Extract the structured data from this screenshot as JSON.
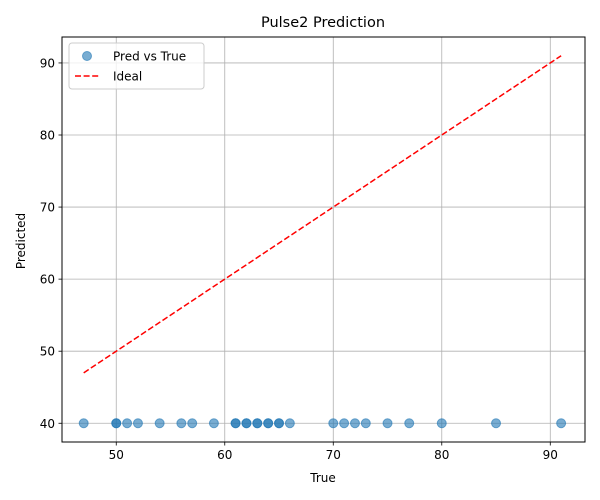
{
  "chart_data": {
    "type": "scatter",
    "title": "Pulse2 Prediction",
    "xlabel": "True",
    "ylabel": "Predicted",
    "xlim": [
      45,
      93.2
    ],
    "ylim": [
      37.4,
      93.6
    ],
    "xticks": [
      50,
      60,
      70,
      80,
      90
    ],
    "yticks": [
      40,
      50,
      60,
      70,
      80,
      90
    ],
    "grid": true,
    "legend_position": "top-left",
    "series": [
      {
        "name": "Pred vs True",
        "kind": "scatter",
        "color": "#1f77b4",
        "points": [
          [
            47,
            40
          ],
          [
            50,
            40
          ],
          [
            50,
            40
          ],
          [
            51,
            40
          ],
          [
            52,
            40
          ],
          [
            54,
            40
          ],
          [
            56,
            40
          ],
          [
            57,
            40
          ],
          [
            59,
            40
          ],
          [
            61,
            40
          ],
          [
            61,
            40
          ],
          [
            62,
            40
          ],
          [
            62,
            40
          ],
          [
            63,
            40
          ],
          [
            63,
            40
          ],
          [
            64,
            40
          ],
          [
            64,
            40
          ],
          [
            65,
            40
          ],
          [
            65,
            40
          ],
          [
            66,
            40
          ],
          [
            70,
            40
          ],
          [
            71,
            40
          ],
          [
            72,
            40
          ],
          [
            73,
            40
          ],
          [
            75,
            40
          ],
          [
            77,
            40
          ],
          [
            80,
            40
          ],
          [
            85,
            40
          ],
          [
            91,
            40
          ]
        ]
      },
      {
        "name": "Ideal",
        "kind": "line",
        "style": "dashed",
        "color": "#ff0000",
        "points": [
          [
            47,
            47
          ],
          [
            91,
            91
          ]
        ]
      }
    ]
  }
}
